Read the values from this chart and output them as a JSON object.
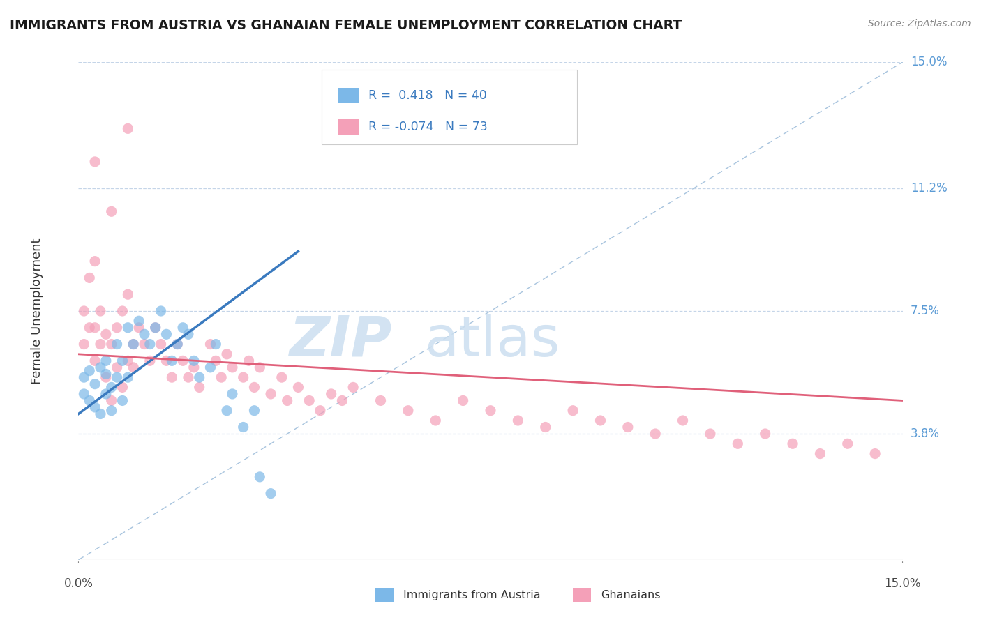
{
  "title": "IMMIGRANTS FROM AUSTRIA VS GHANAIAN FEMALE UNEMPLOYMENT CORRELATION CHART",
  "source": "Source: ZipAtlas.com",
  "ylabel": "Female Unemployment",
  "x_min": 0.0,
  "x_max": 0.15,
  "y_min": 0.0,
  "y_max": 0.15,
  "y_tick_positions": [
    0.038,
    0.075,
    0.112,
    0.15
  ],
  "y_tick_labels": [
    "3.8%",
    "7.5%",
    "11.2%",
    "15.0%"
  ],
  "blue_R": 0.418,
  "blue_N": 40,
  "pink_R": -0.074,
  "pink_N": 73,
  "blue_color": "#7cb8e8",
  "pink_color": "#f4a0b8",
  "blue_line_color": "#3a7abf",
  "pink_line_color": "#e0607a",
  "legend_label_blue": "Immigrants from Austria",
  "legend_label_pink": "Ghanaians",
  "blue_scatter_x": [
    0.001,
    0.001,
    0.002,
    0.002,
    0.003,
    0.003,
    0.004,
    0.004,
    0.005,
    0.005,
    0.005,
    0.006,
    0.006,
    0.007,
    0.007,
    0.008,
    0.008,
    0.009,
    0.009,
    0.01,
    0.011,
    0.012,
    0.013,
    0.014,
    0.015,
    0.016,
    0.017,
    0.018,
    0.019,
    0.02,
    0.021,
    0.022,
    0.024,
    0.025,
    0.027,
    0.028,
    0.03,
    0.032,
    0.033,
    0.035
  ],
  "blue_scatter_y": [
    0.05,
    0.055,
    0.048,
    0.057,
    0.046,
    0.053,
    0.044,
    0.058,
    0.05,
    0.056,
    0.06,
    0.052,
    0.045,
    0.055,
    0.065,
    0.048,
    0.06,
    0.055,
    0.07,
    0.065,
    0.072,
    0.068,
    0.065,
    0.07,
    0.075,
    0.068,
    0.06,
    0.065,
    0.07,
    0.068,
    0.06,
    0.055,
    0.058,
    0.065,
    0.045,
    0.05,
    0.04,
    0.045,
    0.025,
    0.02
  ],
  "pink_scatter_x": [
    0.001,
    0.001,
    0.002,
    0.002,
    0.003,
    0.003,
    0.003,
    0.004,
    0.004,
    0.005,
    0.005,
    0.006,
    0.006,
    0.007,
    0.007,
    0.008,
    0.008,
    0.009,
    0.009,
    0.01,
    0.01,
    0.011,
    0.012,
    0.013,
    0.014,
    0.015,
    0.016,
    0.017,
    0.018,
    0.019,
    0.02,
    0.021,
    0.022,
    0.024,
    0.025,
    0.026,
    0.027,
    0.028,
    0.03,
    0.031,
    0.032,
    0.033,
    0.035,
    0.037,
    0.038,
    0.04,
    0.042,
    0.044,
    0.046,
    0.048,
    0.05,
    0.055,
    0.06,
    0.065,
    0.07,
    0.075,
    0.08,
    0.085,
    0.09,
    0.095,
    0.1,
    0.105,
    0.11,
    0.115,
    0.12,
    0.125,
    0.13,
    0.135,
    0.14,
    0.145,
    0.003,
    0.006,
    0.009
  ],
  "pink_scatter_y": [
    0.065,
    0.075,
    0.07,
    0.085,
    0.06,
    0.07,
    0.09,
    0.065,
    0.075,
    0.055,
    0.068,
    0.048,
    0.065,
    0.058,
    0.07,
    0.052,
    0.075,
    0.06,
    0.08,
    0.058,
    0.065,
    0.07,
    0.065,
    0.06,
    0.07,
    0.065,
    0.06,
    0.055,
    0.065,
    0.06,
    0.055,
    0.058,
    0.052,
    0.065,
    0.06,
    0.055,
    0.062,
    0.058,
    0.055,
    0.06,
    0.052,
    0.058,
    0.05,
    0.055,
    0.048,
    0.052,
    0.048,
    0.045,
    0.05,
    0.048,
    0.052,
    0.048,
    0.045,
    0.042,
    0.048,
    0.045,
    0.042,
    0.04,
    0.045,
    0.042,
    0.04,
    0.038,
    0.042,
    0.038,
    0.035,
    0.038,
    0.035,
    0.032,
    0.035,
    0.032,
    0.12,
    0.105,
    0.13
  ],
  "blue_trend_x": [
    0.0,
    0.04
  ],
  "blue_trend_y": [
    0.044,
    0.093
  ],
  "pink_trend_x": [
    0.0,
    0.15
  ],
  "pink_trend_y": [
    0.062,
    0.048
  ]
}
